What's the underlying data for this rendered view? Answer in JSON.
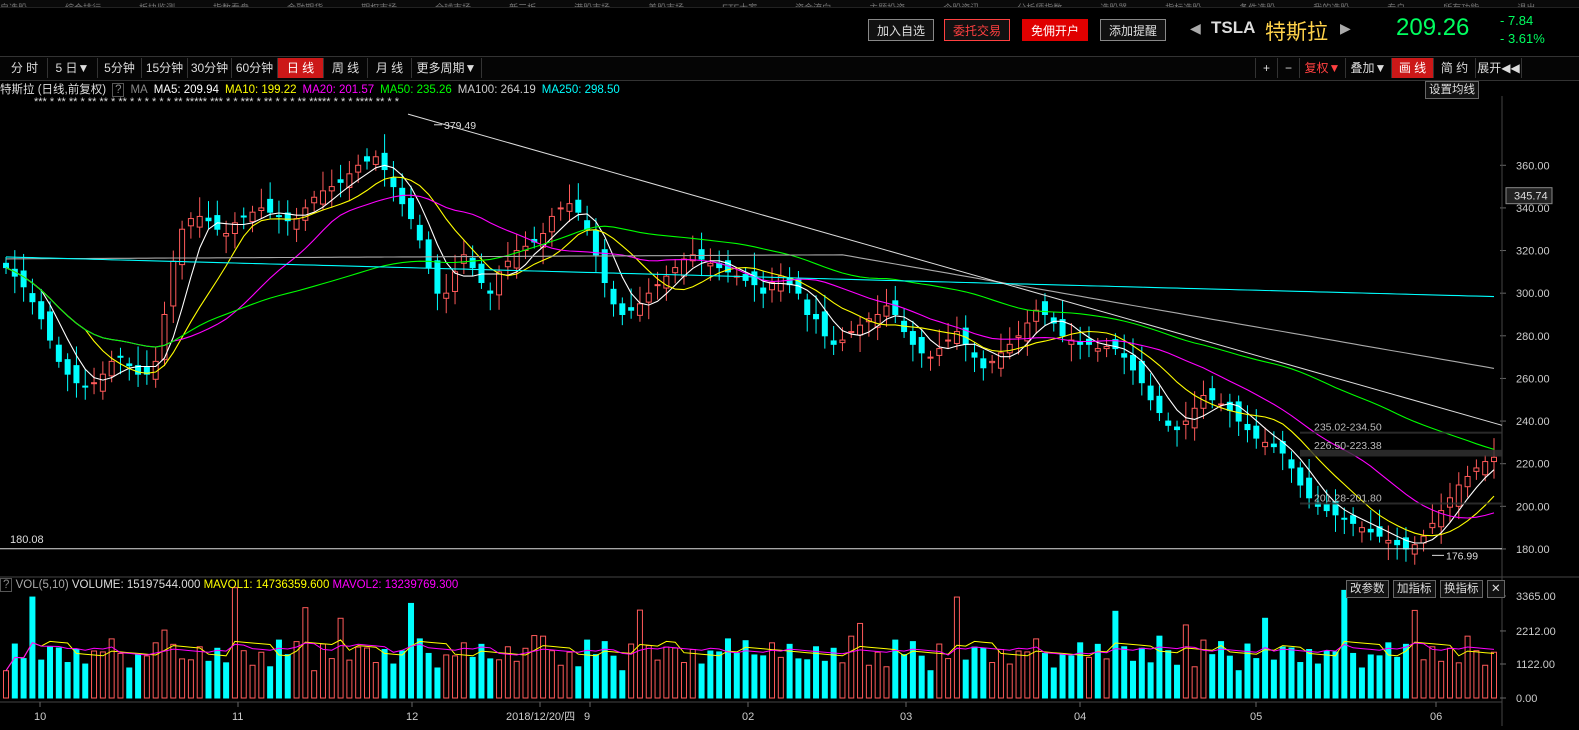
{
  "top_menu": [
    "自选股",
    "综合排行",
    "板块监测",
    "指数看盘",
    "金融期货",
    "期权市场",
    "全球市场",
    "新三板",
    "港股市场",
    "美股市场",
    "ETF大家",
    "资金流向",
    "主题投资",
    "个股资讯",
    "分析师指数",
    "选股器",
    "指标选股",
    "条件选股",
    "我的选股",
    "专户",
    "所有功能",
    "退出"
  ],
  "header": {
    "add_watch": "加入自选",
    "entrust": "委托交易",
    "open_account": "免佣开户",
    "add_alert": "添加提醒",
    "symbol": "TSLA",
    "name": "特斯拉",
    "price": "209.26",
    "change": "- 7.84",
    "change_pct": "- 3.61%",
    "colors": {
      "up": "#ff4040",
      "down": "#00ff60",
      "price": "#00ff60"
    }
  },
  "toolbar": {
    "periods": [
      "分 时",
      "5 日▼",
      "5分钟",
      "15分钟",
      "30分钟",
      "60分钟",
      "日 线",
      "周 线",
      "月 线",
      "更多周期▼"
    ],
    "active": "日 线",
    "right": [
      "+",
      "−",
      "复权▼",
      "叠加▼",
      "画 线",
      "简 约",
      "展开◀◀"
    ]
  },
  "ma_bar": {
    "title": "特斯拉 (日线,前复权)",
    "q": "?",
    "ma": "MA",
    "ma5": "MA5: 209.94",
    "ma10": "MA10: 199.22",
    "ma20": "MA20: 201.57",
    "ma50": "MA50: 235.26",
    "ma100": "MA100: 264.19",
    "ma250": "MA250: 298.50",
    "set_ma": "设置均线"
  },
  "stars_row1": "*** * ** ** * ** ** * ** * * * * * * ** ***** *** * * *** * ** * * * ** ***** * * * **** ** * *",
  "stars_row2": "*** * ** ** * ** ** * ** ** *** * * * * * * ** *****   **** * * ** * * ** * * *******   **** ** * * *",
  "price_axis": [
    "360.00",
    "340.00",
    "320.00",
    "300.00",
    "280.00",
    "260.00",
    "240.00",
    "220.00",
    "200.00",
    "180.00"
  ],
  "current_price_tag": "345.74",
  "annotations": {
    "high": "379.49",
    "low": "176.99",
    "hline_left": "180.08",
    "gap1": "235.02-234.50",
    "gap2": "226.50-223.38",
    "gap3": "201.28-201.80"
  },
  "vol_bar": {
    "q": "?",
    "name": "VOL(5,10)",
    "volume": "VOLUME: 15197544.000",
    "mavol1": "MAVOL1: 14736359.600",
    "mavol2": "MAVOL2: 13239769.300",
    "btn_params": "改参数",
    "btn_add": "加指标",
    "btn_switch": "换指标",
    "btn_close": "✕"
  },
  "vol_axis": [
    "3365.00",
    "2212.00",
    "1122.00",
    "0.00"
  ],
  "x_axis": [
    "10",
    "11",
    "12",
    "2018/12/20/四",
    "9",
    "02",
    "03",
    "04",
    "05",
    "06"
  ],
  "chart_data": {
    "type": "candlestick",
    "y_range": [
      172,
      385
    ],
    "ma_colors": {
      "ma5": "#ffffff",
      "ma10": "#ffff00",
      "ma20": "#ff00ff",
      "ma50": "#00ff00",
      "ma100": "#aaaaaa",
      "ma250": "#00ffff"
    }
  }
}
